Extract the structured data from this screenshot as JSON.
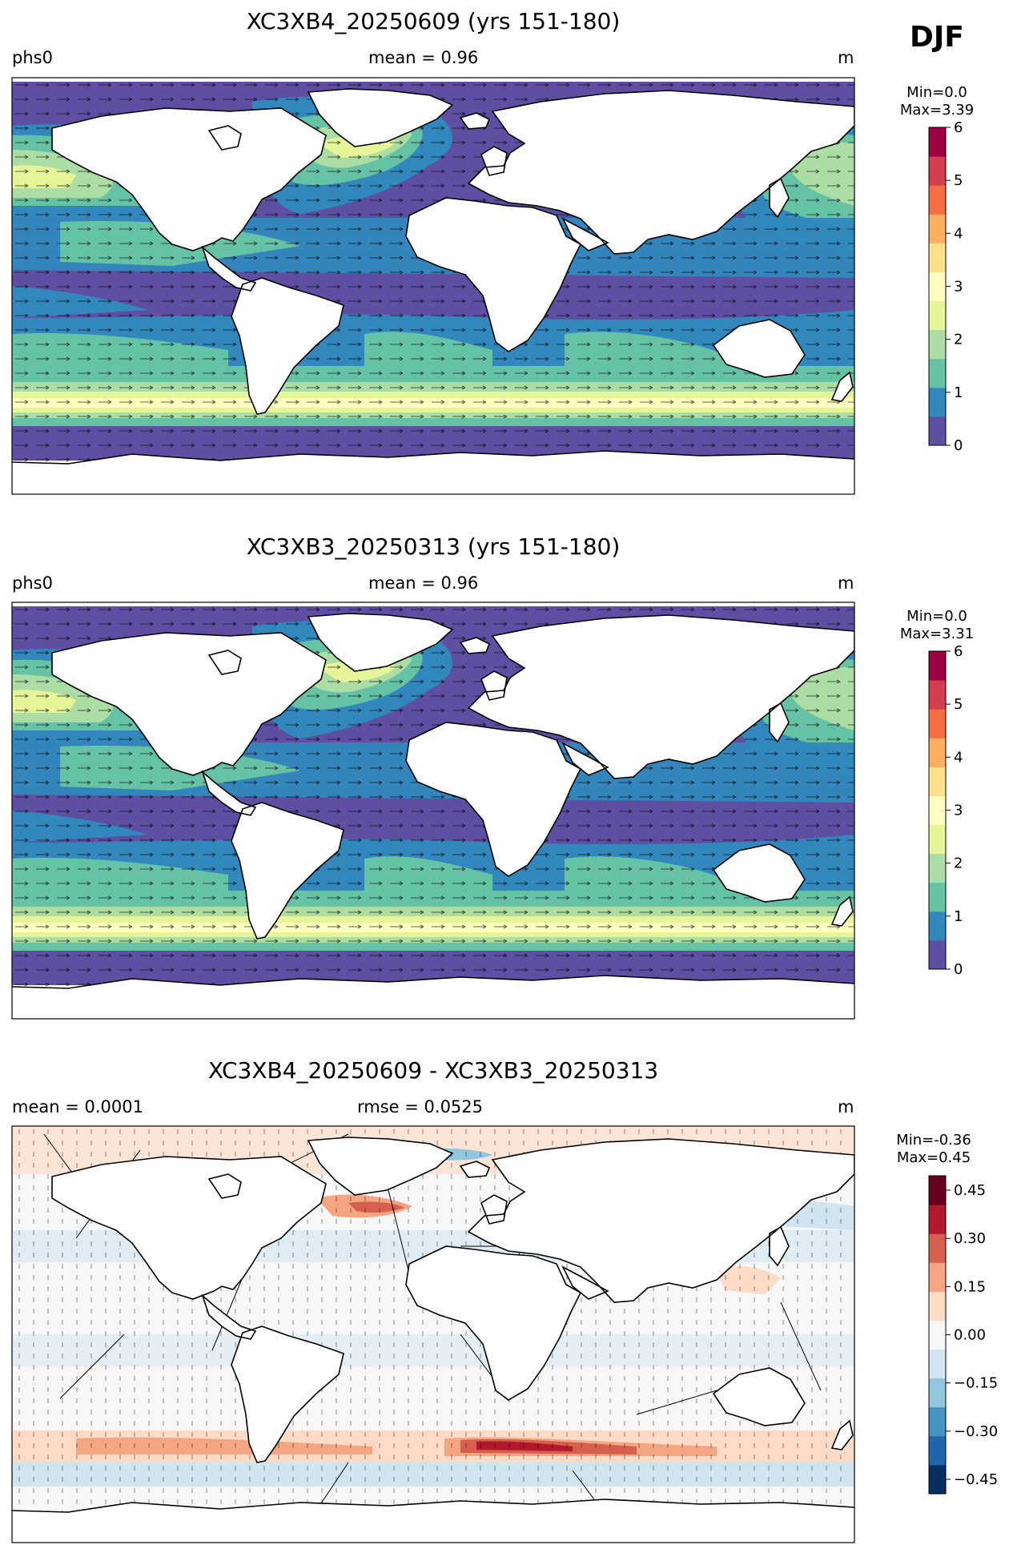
{
  "season": "DJF",
  "panels": [
    {
      "title": "XC3XB4_20250609 (yrs 151-180)",
      "left_label": "phs0",
      "center_label": "mean = 0.96",
      "right_label": "m",
      "minmax": [
        "Min=0.0",
        "Max=3.39"
      ],
      "colorbar": {
        "ticks": [
          "0",
          "1",
          "2",
          "3",
          "4",
          "5",
          "6"
        ],
        "colors": [
          "#5e4fa2",
          "#3288bd",
          "#66c2a5",
          "#abdda4",
          "#e6f598",
          "#ffffbf",
          "#fee08b",
          "#fdae61",
          "#f46d43",
          "#d53e4f",
          "#9e0142"
        ]
      }
    },
    {
      "title": "XC3XB3_20250313 (yrs 151-180)",
      "left_label": "phs0",
      "center_label": "mean = 0.96",
      "right_label": "m",
      "minmax": [
        "Min=0.0",
        "Max=3.31"
      ],
      "colorbar": {
        "ticks": [
          "0",
          "1",
          "2",
          "3",
          "4",
          "5",
          "6"
        ],
        "colors": [
          "#5e4fa2",
          "#3288bd",
          "#66c2a5",
          "#abdda4",
          "#e6f598",
          "#ffffbf",
          "#fee08b",
          "#fdae61",
          "#f46d43",
          "#d53e4f",
          "#9e0142"
        ]
      }
    },
    {
      "title": "XC3XB4_20250609 - XC3XB3_20250313",
      "left_label": "mean = 0.0001",
      "center_label": "rmse = 0.0525",
      "right_label": "m",
      "minmax": [
        "Min=-0.36",
        "Max=0.45"
      ],
      "colorbar": {
        "ticks": [
          "0.45",
          "0.30",
          "0.15",
          "0.00",
          "−0.15",
          "−0.30",
          "−0.45"
        ],
        "colors": [
          "#053061",
          "#2166ac",
          "#4393c3",
          "#92c5de",
          "#d1e5f0",
          "#f7f7f7",
          "#fddbc7",
          "#f4a582",
          "#d6604d",
          "#b2182b",
          "#67001f"
        ]
      }
    }
  ]
}
